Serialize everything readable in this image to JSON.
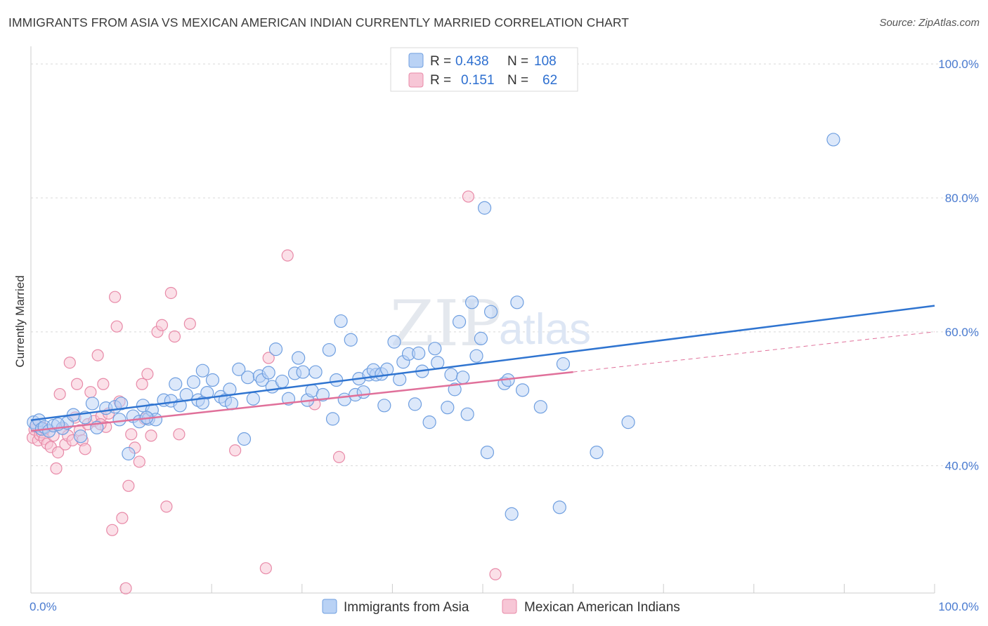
{
  "title": "IMMIGRANTS FROM ASIA VS MEXICAN AMERICAN INDIAN CURRENTLY MARRIED CORRELATION CHART",
  "source": "Source: ZipAtlas.com",
  "watermark": {
    "zip": "ZIP",
    "atlas": "atlas"
  },
  "colors": {
    "blue": "#6f9fe0",
    "blue_fill": "#b9d2f5",
    "blue_line": "#2f74d0",
    "pink": "#e88aa8",
    "pink_fill": "#f7c6d6",
    "pink_line": "#e0709a",
    "tick": "#4a7bd0"
  },
  "legend": {
    "r_label": "R =",
    "n_label": "N =",
    "blue_r": "0.438",
    "blue_n": "108",
    "pink_r": "0.151",
    "pink_n": "62"
  },
  "chart_data": {
    "type": "scatter",
    "title": "IMMIGRANTS FROM ASIA VS MEXICAN AMERICAN INDIAN CURRENTLY MARRIED CORRELATION CHART",
    "xlabel": "",
    "ylabel": "Currently Married",
    "xlim": [
      0,
      100
    ],
    "ylim": [
      21,
      102
    ],
    "x_tick_labels": [
      "0.0%",
      "100.0%"
    ],
    "y_ticks": [
      40,
      60,
      80,
      100
    ],
    "y_tick_labels": [
      "40.0%",
      "60.0%",
      "80.0%",
      "100.0%"
    ],
    "grid": true,
    "legend_position": "top-center",
    "series": [
      {
        "name": "Immigrants from Asia",
        "color": "#6f9fe0",
        "trend": {
          "x": [
            0,
            100
          ],
          "y": [
            46.8,
            63.9
          ]
        },
        "points": [
          [
            0.3,
            46.5
          ],
          [
            0.6,
            46.0
          ],
          [
            0.9,
            46.8
          ],
          [
            1.2,
            45.5
          ],
          [
            1.5,
            45.8
          ],
          [
            2.0,
            45.2
          ],
          [
            2.5,
            46.0
          ],
          [
            3.5,
            45.6
          ],
          [
            4.0,
            46.4
          ],
          [
            4.7,
            47.6
          ],
          [
            5.5,
            44.4
          ],
          [
            6.0,
            47.2
          ],
          [
            6.8,
            49.3
          ],
          [
            7.3,
            45.7
          ],
          [
            8.3,
            48.6
          ],
          [
            9.3,
            48.8
          ],
          [
            9.8,
            46.9
          ],
          [
            10.0,
            49.3
          ],
          [
            10.8,
            41.8
          ],
          [
            11.3,
            47.4
          ],
          [
            12.0,
            46.6
          ],
          [
            12.4,
            49.0
          ],
          [
            13.0,
            47.0
          ],
          [
            13.4,
            48.3
          ],
          [
            13.8,
            46.9
          ],
          [
            14.7,
            49.8
          ],
          [
            15.5,
            49.7
          ],
          [
            16.0,
            52.2
          ],
          [
            16.5,
            49.0
          ],
          [
            17.2,
            50.6
          ],
          [
            18.0,
            52.5
          ],
          [
            18.5,
            49.8
          ],
          [
            19.0,
            54.2
          ],
          [
            19.5,
            50.9
          ],
          [
            19.0,
            49.4
          ],
          [
            20.1,
            52.8
          ],
          [
            21.0,
            50.3
          ],
          [
            21.5,
            49.8
          ],
          [
            22.0,
            51.4
          ],
          [
            22.2,
            49.3
          ],
          [
            23.0,
            54.4
          ],
          [
            23.6,
            44.0
          ],
          [
            24.0,
            53.2
          ],
          [
            24.6,
            50.0
          ],
          [
            25.3,
            53.4
          ],
          [
            25.6,
            52.8
          ],
          [
            26.3,
            53.9
          ],
          [
            26.7,
            51.8
          ],
          [
            27.1,
            57.4
          ],
          [
            27.8,
            52.6
          ],
          [
            28.5,
            50.0
          ],
          [
            29.2,
            53.8
          ],
          [
            29.6,
            56.1
          ],
          [
            30.1,
            54.0
          ],
          [
            30.6,
            49.8
          ],
          [
            31.1,
            51.2
          ],
          [
            31.5,
            54.0
          ],
          [
            32.3,
            50.6
          ],
          [
            33.0,
            57.3
          ],
          [
            33.4,
            47.0
          ],
          [
            33.8,
            52.8
          ],
          [
            34.3,
            61.6
          ],
          [
            34.7,
            49.9
          ],
          [
            35.4,
            58.8
          ],
          [
            35.9,
            50.6
          ],
          [
            36.3,
            53.0
          ],
          [
            36.8,
            51.0
          ],
          [
            37.4,
            53.6
          ],
          [
            38.2,
            53.6
          ],
          [
            37.9,
            54.3
          ],
          [
            38.8,
            53.7
          ],
          [
            39.1,
            49.0
          ],
          [
            39.4,
            54.4
          ],
          [
            40.2,
            58.5
          ],
          [
            40.8,
            52.9
          ],
          [
            41.2,
            55.5
          ],
          [
            41.8,
            56.7
          ],
          [
            42.9,
            56.8
          ],
          [
            42.5,
            49.2
          ],
          [
            43.3,
            54.1
          ],
          [
            44.1,
            46.5
          ],
          [
            44.7,
            57.5
          ],
          [
            45.0,
            55.4
          ],
          [
            46.1,
            48.7
          ],
          [
            46.5,
            53.6
          ],
          [
            46.9,
            51.4
          ],
          [
            47.4,
            61.5
          ],
          [
            47.8,
            53.2
          ],
          [
            48.3,
            47.7
          ],
          [
            48.8,
            64.4
          ],
          [
            49.3,
            56.4
          ],
          [
            49.8,
            59.0
          ],
          [
            50.2,
            78.5
          ],
          [
            50.5,
            42.0
          ],
          [
            50.9,
            63.0
          ],
          [
            52.4,
            52.3
          ],
          [
            52.8,
            52.8
          ],
          [
            53.2,
            32.8
          ],
          [
            53.8,
            64.4
          ],
          [
            54.4,
            51.3
          ],
          [
            56.4,
            48.8
          ],
          [
            58.5,
            33.8
          ],
          [
            58.9,
            55.2
          ],
          [
            62.6,
            42.0
          ],
          [
            66.1,
            46.5
          ],
          [
            88.8,
            88.7
          ],
          [
            3.0,
            46.2
          ],
          [
            12.8,
            47.2
          ]
        ]
      },
      {
        "name": "Mexican American Indians",
        "color": "#e88aa8",
        "trend": {
          "x": [
            0,
            60
          ],
          "y": [
            45.2,
            54.0
          ]
        },
        "trend_dashed": {
          "x": [
            60,
            100
          ],
          "y": [
            54.0,
            60.0
          ]
        },
        "points": [
          [
            0.2,
            44.2
          ],
          [
            0.4,
            45.4
          ],
          [
            0.6,
            46.1
          ],
          [
            0.8,
            43.8
          ],
          [
            1.0,
            44.6
          ],
          [
            1.2,
            45.0
          ],
          [
            1.5,
            44.0
          ],
          [
            1.8,
            43.3
          ],
          [
            2.2,
            42.8
          ],
          [
            2.5,
            44.5
          ],
          [
            2.8,
            39.6
          ],
          [
            3.0,
            42.0
          ],
          [
            3.2,
            50.7
          ],
          [
            3.5,
            45.5
          ],
          [
            3.8,
            43.2
          ],
          [
            4.1,
            44.5
          ],
          [
            4.3,
            55.4
          ],
          [
            4.6,
            43.8
          ],
          [
            4.9,
            47.2
          ],
          [
            5.1,
            52.2
          ],
          [
            5.4,
            45.3
          ],
          [
            5.7,
            43.8
          ],
          [
            6.0,
            42.5
          ],
          [
            6.3,
            46.2
          ],
          [
            6.6,
            51.0
          ],
          [
            7.0,
            46.7
          ],
          [
            7.4,
            56.5
          ],
          [
            7.8,
            47.4
          ],
          [
            8.0,
            52.2
          ],
          [
            8.3,
            45.8
          ],
          [
            8.6,
            47.8
          ],
          [
            9.0,
            30.4
          ],
          [
            9.3,
            65.2
          ],
          [
            9.5,
            60.8
          ],
          [
            9.8,
            49.6
          ],
          [
            10.1,
            32.2
          ],
          [
            10.5,
            21.7
          ],
          [
            10.8,
            37.0
          ],
          [
            11.1,
            44.7
          ],
          [
            11.5,
            42.7
          ],
          [
            12.0,
            40.6
          ],
          [
            12.3,
            52.2
          ],
          [
            12.6,
            47.0
          ],
          [
            12.9,
            53.7
          ],
          [
            13.3,
            44.5
          ],
          [
            14.0,
            60.0
          ],
          [
            14.5,
            61.0
          ],
          [
            15.0,
            33.9
          ],
          [
            15.5,
            65.8
          ],
          [
            15.9,
            59.3
          ],
          [
            16.4,
            44.7
          ],
          [
            17.6,
            61.2
          ],
          [
            22.6,
            42.3
          ],
          [
            26.0,
            24.7
          ],
          [
            26.3,
            56.1
          ],
          [
            28.4,
            71.4
          ],
          [
            31.4,
            49.2
          ],
          [
            34.1,
            41.3
          ],
          [
            48.4,
            80.2
          ],
          [
            51.4,
            23.8
          ],
          [
            1.3,
            45.7
          ],
          [
            7.7,
            46.2
          ]
        ]
      }
    ]
  },
  "bottom_legend": [
    {
      "label": "Immigrants from Asia",
      "color": "#6f9fe0"
    },
    {
      "label": "Mexican American Indians",
      "color": "#e88aa8"
    }
  ]
}
